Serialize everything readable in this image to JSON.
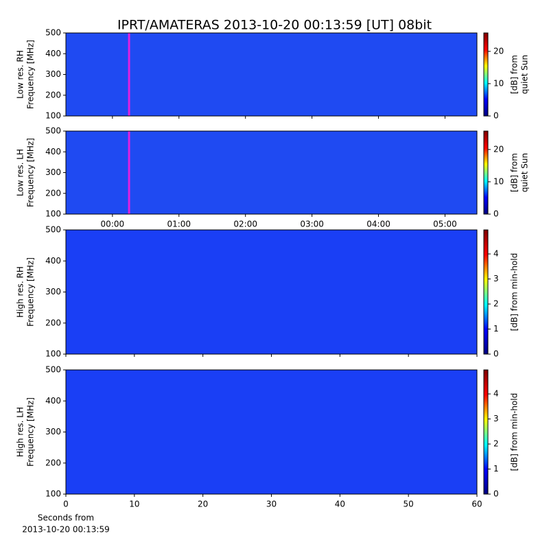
{
  "chart_data": [
    {
      "type": "spectrogram",
      "title": "IPRT/AMATERAS 2013-10-20 00:13:59 [UT]   08bit",
      "ylabel": [
        "Low res. RH",
        "Frequency [MHz]"
      ],
      "ylim": [
        100,
        500
      ],
      "yticks": [
        100,
        200,
        300,
        400,
        500
      ],
      "xlim": [
        -0.7,
        5.48
      ],
      "xticks": [
        0,
        1,
        2,
        3,
        4,
        5
      ],
      "show_xticklabels": false,
      "background_color": "#1f4af2",
      "marker": {
        "x": 0.25,
        "color": "#e020e0"
      },
      "colorbar": {
        "label": [
          "[dB] from",
          "quiet Sun"
        ],
        "lim": [
          0,
          25.7
        ],
        "ticks": [
          0,
          10,
          20
        ],
        "colormap": [
          "#00007f",
          "#0000ff",
          "#00ffff",
          "#ffff00",
          "#ff0000",
          "#7f0000"
        ]
      }
    },
    {
      "type": "spectrogram",
      "ylabel": [
        "Low res. LH",
        "Frequency [MHz]"
      ],
      "ylim": [
        100,
        500
      ],
      "yticks": [
        100,
        200,
        300,
        400,
        500
      ],
      "xlim": [
        -0.7,
        5.48
      ],
      "xticks": [
        {
          "value": 0,
          "label": "00:00"
        },
        {
          "value": 1,
          "label": "01:00"
        },
        {
          "value": 2,
          "label": "02:00"
        },
        {
          "value": 3,
          "label": "03:00"
        },
        {
          "value": 4,
          "label": "04:00"
        },
        {
          "value": 5,
          "label": "05:00"
        }
      ],
      "show_xticklabels": true,
      "background_color": "#1f4af2",
      "marker": {
        "x": 0.25,
        "color": "#e020e0"
      },
      "colorbar": {
        "label": [
          "[dB] from",
          "quiet Sun"
        ],
        "lim": [
          0,
          25.7
        ],
        "ticks": [
          0,
          10,
          20
        ],
        "colormap": [
          "#00007f",
          "#0000ff",
          "#00ffff",
          "#ffff00",
          "#ff0000",
          "#7f0000"
        ]
      }
    },
    {
      "type": "spectrogram",
      "ylabel": [
        "High res. RH",
        "Frequency [MHz]"
      ],
      "ylim": [
        100,
        500
      ],
      "yticks": [
        100,
        200,
        300,
        400,
        500
      ],
      "xlim": [
        0,
        60
      ],
      "xticks": [
        0,
        10,
        20,
        30,
        40,
        50,
        60
      ],
      "show_xticklabels": false,
      "background_color": "#1a3ff5",
      "colorbar": {
        "label": [
          "[dB] from min-hold"
        ],
        "lim": [
          0,
          4.96
        ],
        "ticks": [
          0,
          1,
          2,
          3,
          4
        ],
        "colormap": [
          "#00007f",
          "#0000ff",
          "#00ffff",
          "#ffff00",
          "#ff0000",
          "#7f0000"
        ]
      }
    },
    {
      "type": "spectrogram",
      "ylabel": [
        "High res. LH",
        "Frequency [MHz]"
      ],
      "ylim": [
        100,
        500
      ],
      "yticks": [
        100,
        200,
        300,
        400,
        500
      ],
      "xlim": [
        0,
        60
      ],
      "xticks": [
        0,
        10,
        20,
        30,
        40,
        50,
        60
      ],
      "show_xticklabels": true,
      "xlabel": [
        "Seconds from",
        "2013-10-20 00:13:59"
      ],
      "background_color": "#1a3ff5",
      "colorbar": {
        "label": [
          "[dB] from min-hold"
        ],
        "lim": [
          0,
          4.96
        ],
        "ticks": [
          0,
          1,
          2,
          3,
          4
        ],
        "colormap": [
          "#00007f",
          "#0000ff",
          "#00ffff",
          "#ffff00",
          "#ff0000",
          "#7f0000"
        ]
      }
    }
  ]
}
